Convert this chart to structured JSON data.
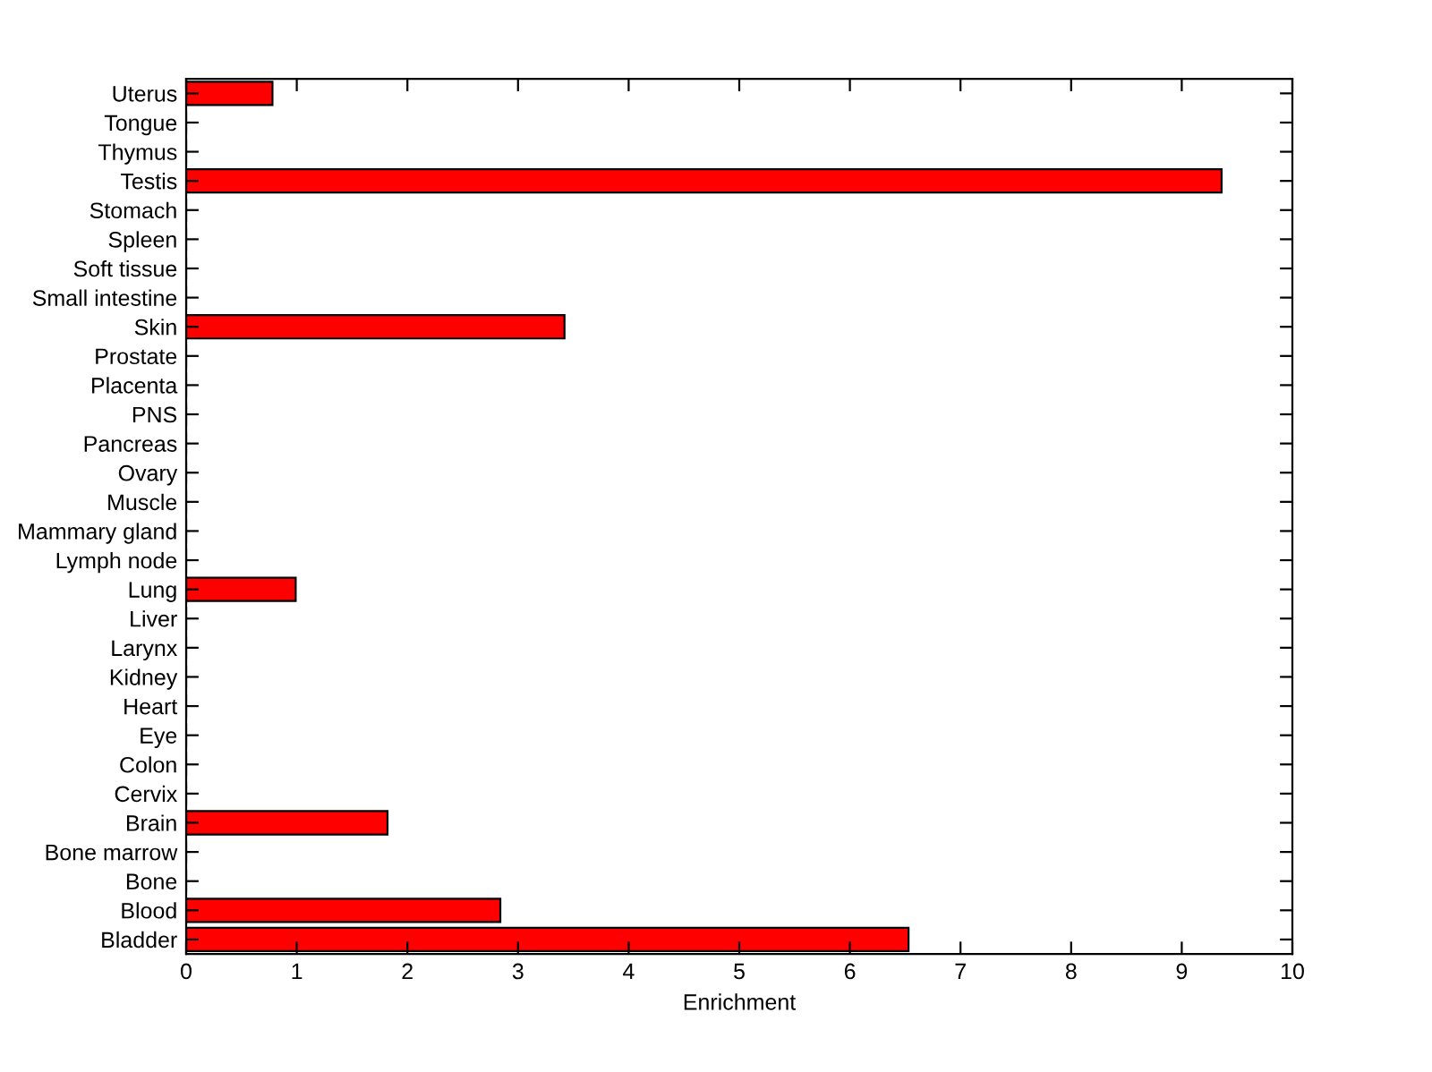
{
  "chart_data": {
    "type": "bar",
    "orientation": "horizontal",
    "xlabel": "Enrichment",
    "categories": [
      "Uterus",
      "Tongue",
      "Thymus",
      "Testis",
      "Stomach",
      "Spleen",
      "Soft tissue",
      "Small intestine",
      "Skin",
      "Prostate",
      "Placenta",
      "PNS",
      "Pancreas",
      "Ovary",
      "Muscle",
      "Mammary gland",
      "Lymph node",
      "Lung",
      "Liver",
      "Larynx",
      "Kidney",
      "Heart",
      "Eye",
      "Colon",
      "Cervix",
      "Brain",
      "Bone marrow",
      "Bone",
      "Blood",
      "Bladder"
    ],
    "values": [
      0.78,
      0,
      0,
      9.36,
      0,
      0,
      0,
      0,
      3.42,
      0,
      0,
      0,
      0,
      0,
      0,
      0,
      0,
      0.99,
      0,
      0,
      0,
      0,
      0,
      0,
      0,
      1.82,
      0,
      0,
      2.84,
      6.53
    ],
    "color": "#ff0000",
    "xlim": [
      0,
      10
    ],
    "xticks": [
      0,
      1,
      2,
      3,
      4,
      5,
      6,
      7,
      8,
      9,
      10
    ],
    "grid": false
  }
}
